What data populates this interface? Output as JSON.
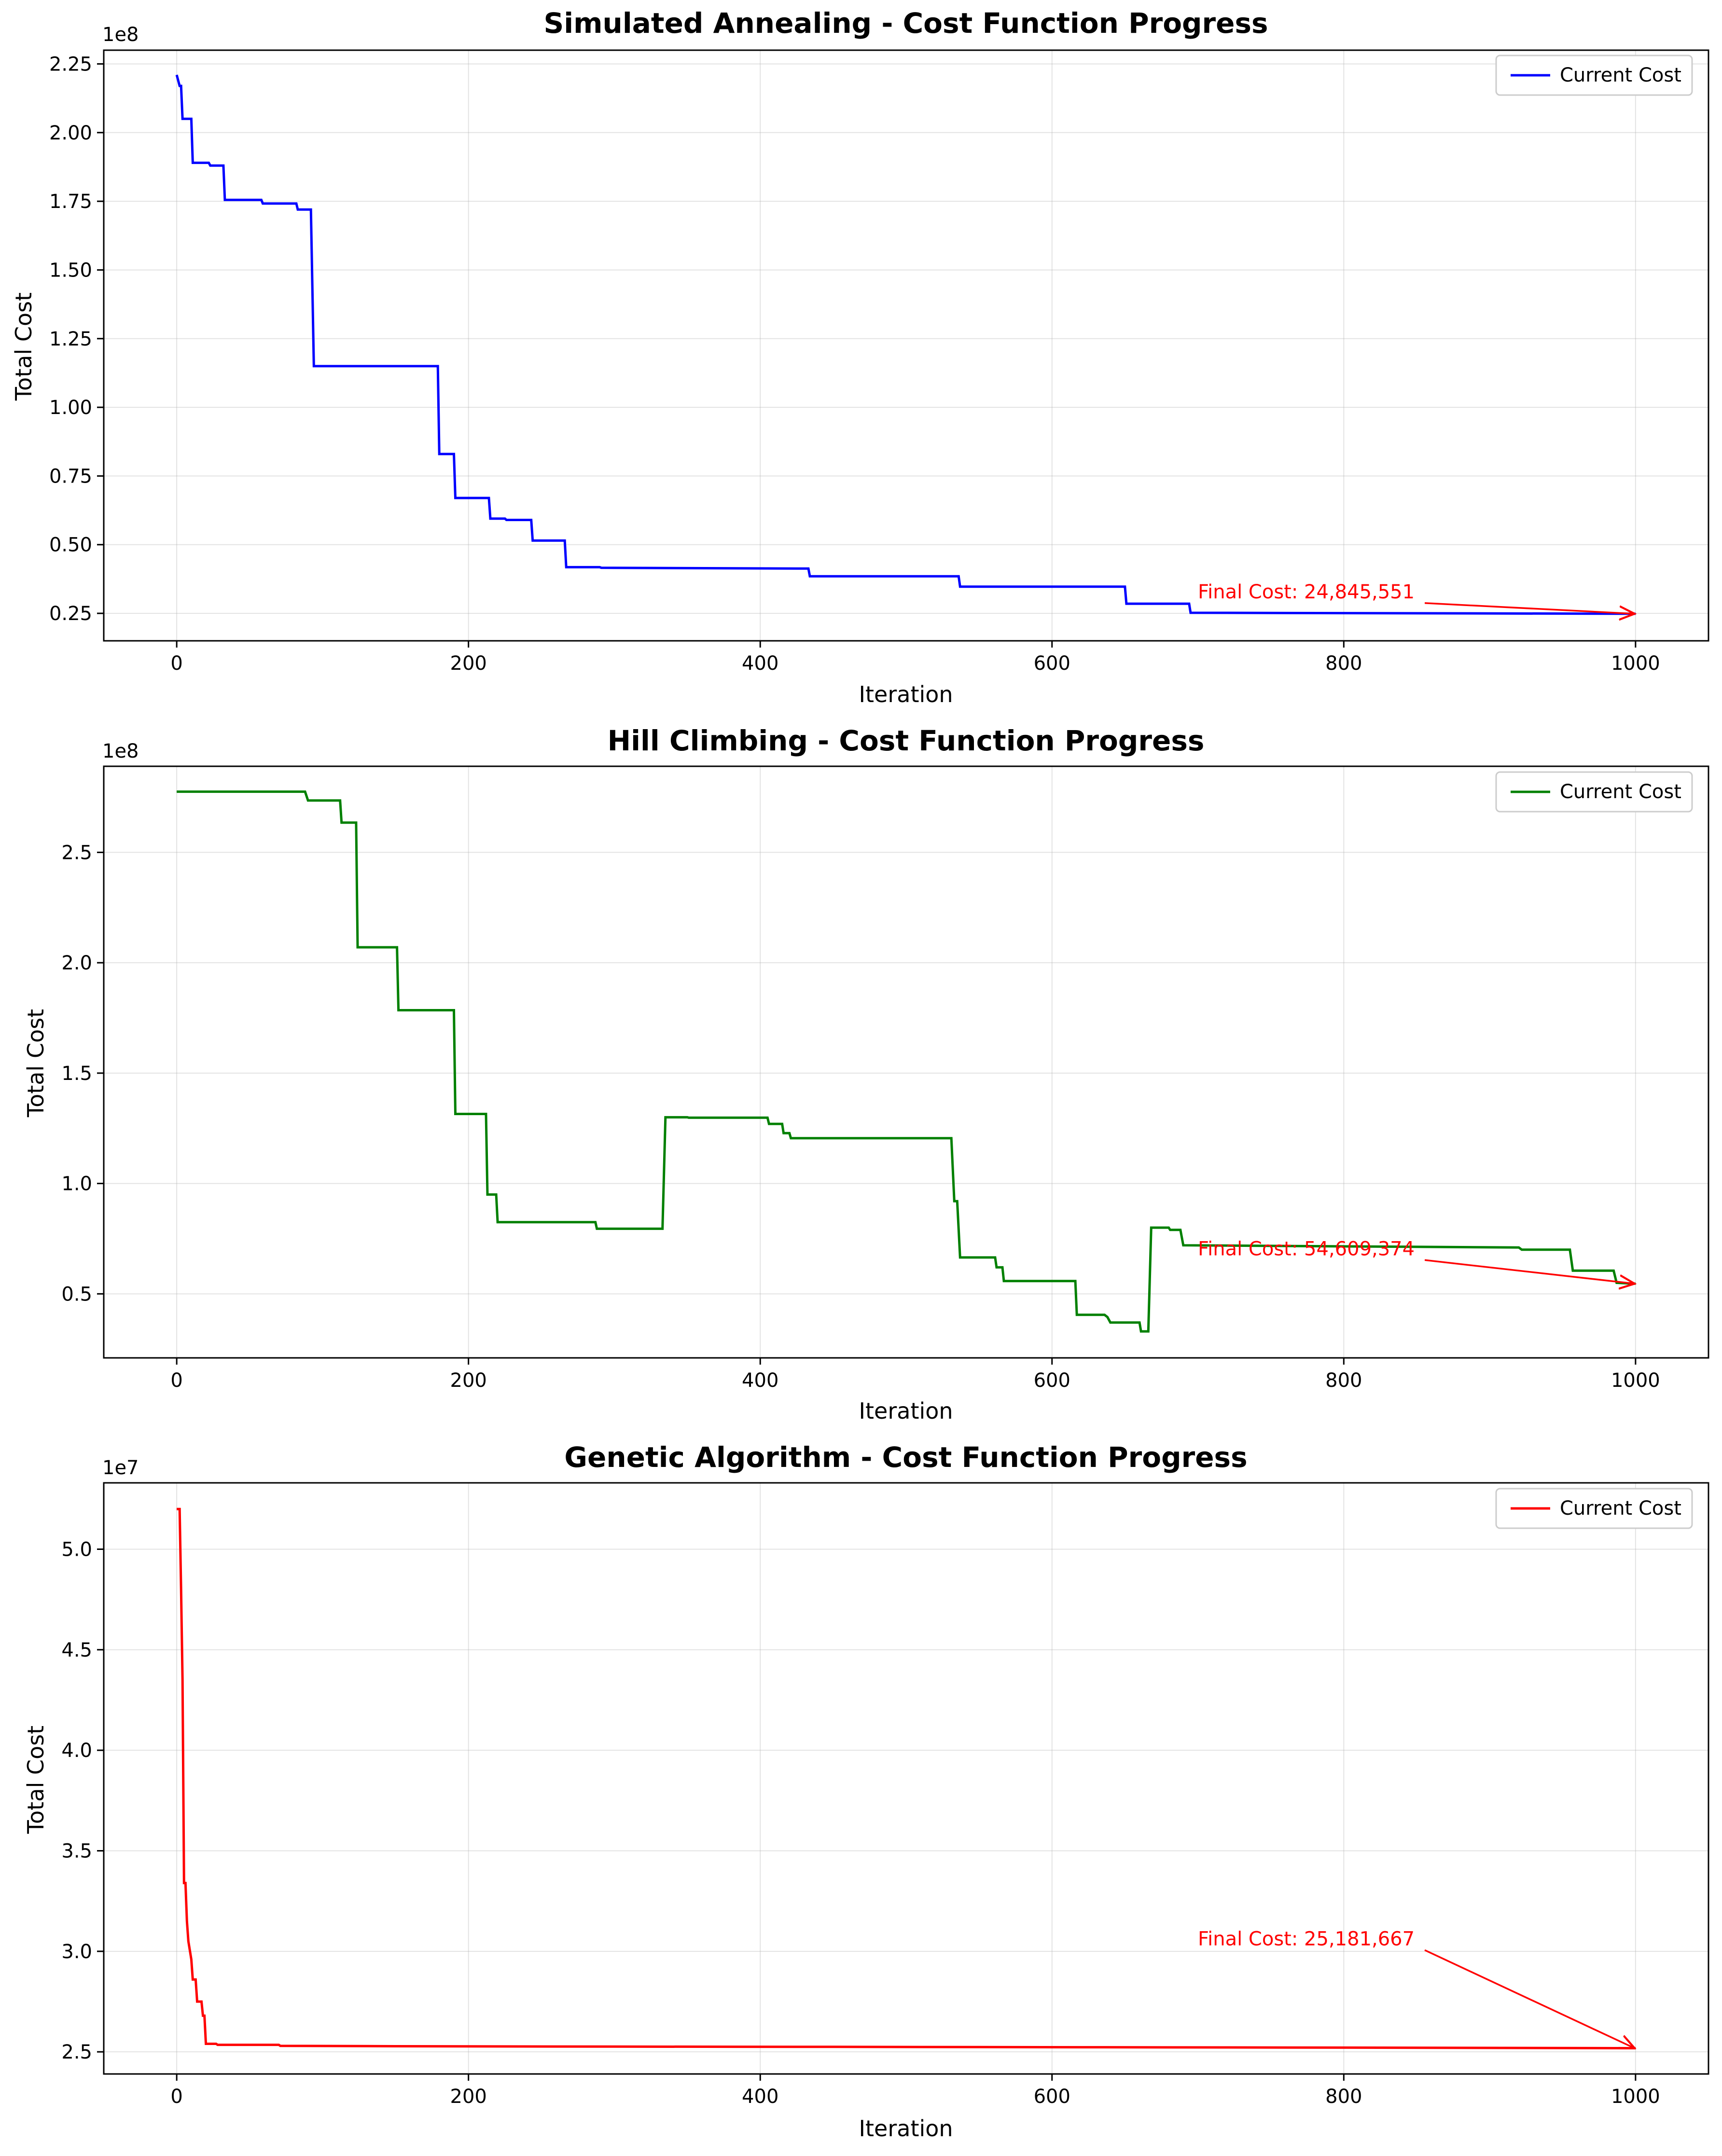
{
  "chart_data": [
    {
      "type": "line",
      "title": "Simulated Annealing - Cost Function Progress",
      "xlabel": "Iteration",
      "ylabel": "Total Cost",
      "offset_label": "1e8",
      "scale": 100000000,
      "xlim": [
        -50,
        1050
      ],
      "ylim": [
        15000000,
        230000000
      ],
      "xticks": [
        0,
        200,
        400,
        600,
        800,
        1000
      ],
      "xtick_labels": [
        "0",
        "200",
        "400",
        "600",
        "800",
        "1000"
      ],
      "yticks": [
        25000000,
        50000000,
        75000000,
        100000000,
        125000000,
        150000000,
        175000000,
        200000000,
        225000000
      ],
      "ytick_labels": [
        "0.25",
        "0.50",
        "0.75",
        "1.00",
        "1.25",
        "1.50",
        "1.75",
        "2.00",
        "2.25"
      ],
      "grid": true,
      "legend_position": "upper right",
      "line_color": "#0000ff",
      "series": [
        {
          "name": "Current Cost",
          "points": [
            [
              0,
              221000000
            ],
            [
              2,
              217000000
            ],
            [
              3,
              217000000
            ],
            [
              4,
              205000000
            ],
            [
              10,
              205000000
            ],
            [
              11,
              189000000
            ],
            [
              22,
              189000000
            ],
            [
              23,
              188000000
            ],
            [
              32,
              188000000
            ],
            [
              33,
              175500000
            ],
            [
              58,
              175500000
            ],
            [
              59,
              174200000
            ],
            [
              82,
              174200000
            ],
            [
              83,
              172000000
            ],
            [
              92,
              172000000
            ],
            [
              94,
              115000000
            ],
            [
              179,
              115000000
            ],
            [
              180,
              83000000
            ],
            [
              190,
              83000000
            ],
            [
              191,
              67000000
            ],
            [
              214,
              67000000
            ],
            [
              215,
              59500000
            ],
            [
              225,
              59500000
            ],
            [
              226,
              59000000
            ],
            [
              243,
              59000000
            ],
            [
              244,
              51500000
            ],
            [
              266,
              51500000
            ],
            [
              267,
              41800000
            ],
            [
              290,
              41800000
            ],
            [
              291,
              41600000
            ],
            [
              433,
              41300000
            ],
            [
              434,
              38500000
            ],
            [
              536,
              38500000
            ],
            [
              537,
              34700000
            ],
            [
              650,
              34700000
            ],
            [
              651,
              28500000
            ],
            [
              694,
              28500000
            ],
            [
              695,
              25200000
            ],
            [
              1000,
              24845551
            ]
          ]
        }
      ],
      "annotation": {
        "text": "Final Cost: 24,845,551",
        "text_x": 700,
        "text_y": 30500000,
        "arrow_x": 1000,
        "arrow_y": 24845551,
        "color": "#ff0000"
      }
    },
    {
      "type": "line",
      "title": "Hill Climbing - Cost Function Progress",
      "xlabel": "Iteration",
      "ylabel": "Total Cost",
      "offset_label": "1e8",
      "scale": 100000000,
      "xlim": [
        -50,
        1050
      ],
      "ylim": [
        21000000,
        289000000
      ],
      "xticks": [
        0,
        200,
        400,
        600,
        800,
        1000
      ],
      "xtick_labels": [
        "0",
        "200",
        "400",
        "600",
        "800",
        "1000"
      ],
      "yticks": [
        50000000,
        100000000,
        150000000,
        200000000,
        250000000
      ],
      "ytick_labels": [
        "0.5",
        "1.0",
        "1.5",
        "2.0",
        "2.5"
      ],
      "grid": true,
      "legend_position": "upper right",
      "line_color": "#008000",
      "series": [
        {
          "name": "Current Cost",
          "points": [
            [
              0,
              277500000
            ],
            [
              88,
              277500000
            ],
            [
              90,
              273500000
            ],
            [
              112,
              273500000
            ],
            [
              113,
              263500000
            ],
            [
              123,
              263500000
            ],
            [
              124,
              207000000
            ],
            [
              151,
              207000000
            ],
            [
              152,
              178500000
            ],
            [
              190,
              178500000
            ],
            [
              191,
              131500000
            ],
            [
              212,
              131500000
            ],
            [
              213,
              95000000
            ],
            [
              219,
              95000000
            ],
            [
              220,
              82500000
            ],
            [
              287,
              82500000
            ],
            [
              288,
              79500000
            ],
            [
              333,
              79500000
            ],
            [
              335,
              130000000
            ],
            [
              350,
              130000000
            ],
            [
              351,
              129800000
            ],
            [
              405,
              129800000
            ],
            [
              406,
              127000000
            ],
            [
              415,
              127000000
            ],
            [
              416,
              122800000
            ],
            [
              420,
              122800000
            ],
            [
              421,
              120500000
            ],
            [
              531,
              120500000
            ],
            [
              533,
              92000000
            ],
            [
              535,
              92000000
            ],
            [
              537,
              66500000
            ],
            [
              561,
              66500000
            ],
            [
              562,
              62000000
            ],
            [
              566,
              62000000
            ],
            [
              567,
              55800000
            ],
            [
              616,
              55800000
            ],
            [
              617,
              40500000
            ],
            [
              636,
              40500000
            ],
            [
              638,
              39500000
            ],
            [
              640,
              37000000
            ],
            [
              660,
              37000000
            ],
            [
              661,
              33000000
            ],
            [
              666,
              33000000
            ],
            [
              668,
              80000000
            ],
            [
              680,
              80000000
            ],
            [
              681,
              79000000
            ],
            [
              688,
              79000000
            ],
            [
              690,
              72000000
            ],
            [
              920,
              71000000
            ],
            [
              922,
              70000000
            ],
            [
              955,
              70000000
            ],
            [
              957,
              60500000
            ],
            [
              985,
              60500000
            ],
            [
              987,
              55000000
            ],
            [
              1000,
              54609374
            ]
          ]
        }
      ],
      "annotation": {
        "text": "Final Cost: 54,609,374",
        "text_x": 700,
        "text_y": 67500000,
        "arrow_x": 1000,
        "arrow_y": 54609374,
        "color": "#ff0000"
      }
    },
    {
      "type": "line",
      "title": "Genetic Algorithm - Cost Function Progress",
      "xlabel": "Iteration",
      "ylabel": "Total Cost",
      "offset_label": "1e7",
      "scale": 10000000,
      "xlim": [
        -50,
        1050
      ],
      "ylim": [
        23900000,
        53300000
      ],
      "xticks": [
        0,
        200,
        400,
        600,
        800,
        1000
      ],
      "xtick_labels": [
        "0",
        "200",
        "400",
        "600",
        "800",
        "1000"
      ],
      "yticks": [
        25000000,
        30000000,
        35000000,
        40000000,
        45000000,
        50000000
      ],
      "ytick_labels": [
        "2.5",
        "3.0",
        "3.5",
        "4.0",
        "4.5",
        "5.0"
      ],
      "grid": true,
      "legend_position": "upper right",
      "line_color": "#ff0000",
      "series": [
        {
          "name": "Current Cost",
          "points": [
            [
              0,
              52000000
            ],
            [
              2,
              52000000
            ],
            [
              3,
              48000000
            ],
            [
              4,
              43500000
            ],
            [
              5,
              33400000
            ],
            [
              6,
              33400000
            ],
            [
              7,
              31500000
            ],
            [
              8,
              30500000
            ],
            [
              10,
              29600000
            ],
            [
              11,
              28600000
            ],
            [
              13,
              28600000
            ],
            [
              14,
              27500000
            ],
            [
              17,
              27500000
            ],
            [
              18,
              26800000
            ],
            [
              19,
              26800000
            ],
            [
              20,
              25400000
            ],
            [
              27,
              25400000
            ],
            [
              28,
              25350000
            ],
            [
              70,
              25350000
            ],
            [
              71,
              25300000
            ],
            [
              150,
              25280000
            ],
            [
              300,
              25260000
            ],
            [
              450,
              25250000
            ],
            [
              620,
              25230000
            ],
            [
              800,
              25210000
            ],
            [
              1000,
              25181667
            ]
          ]
        }
      ],
      "annotation": {
        "text": "Final Cost: 25,181,667",
        "text_x": 700,
        "text_y": 30300000,
        "arrow_x": 1000,
        "arrow_y": 25181667,
        "color": "#ff0000"
      }
    }
  ]
}
